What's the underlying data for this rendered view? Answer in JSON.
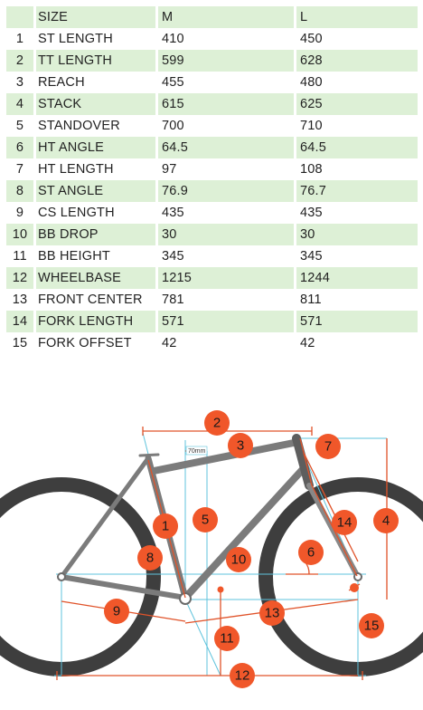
{
  "table": {
    "headers": [
      "",
      "SIZE",
      "M",
      "L"
    ],
    "rows": [
      {
        "n": "1",
        "name": "ST LENGTH",
        "m": "410",
        "l": "450"
      },
      {
        "n": "2",
        "name": "TT LENGTH",
        "m": "599",
        "l": "628"
      },
      {
        "n": "3",
        "name": "REACH",
        "m": "455",
        "l": "480"
      },
      {
        "n": "4",
        "name": "STACK",
        "m": "615",
        "l": "625"
      },
      {
        "n": "5",
        "name": "STANDOVER",
        "m": "700",
        "l": "710"
      },
      {
        "n": "6",
        "name": "HT ANGLE",
        "m": "64.5",
        "l": "64.5"
      },
      {
        "n": "7",
        "name": "HT LENGTH",
        "m": "97",
        "l": "108"
      },
      {
        "n": "8",
        "name": "ST ANGLE",
        "m": "76.9",
        "l": "76.7"
      },
      {
        "n": "9",
        "name": "CS LENGTH",
        "m": "435",
        "l": "435"
      },
      {
        "n": "10",
        "name": "BB DROP",
        "m": "30",
        "l": "30"
      },
      {
        "n": "11",
        "name": "BB HEIGHT",
        "m": "345",
        "l": "345"
      },
      {
        "n": "12",
        "name": "WHEELBASE",
        "m": "1215",
        "l": "1244"
      },
      {
        "n": "13",
        "name": "FRONT CENTER",
        "m": "781",
        "l": "811"
      },
      {
        "n": "14",
        "name": "FORK LENGTH",
        "m": "571",
        "l": "571"
      },
      {
        "n": "15",
        "name": "FORK OFFSET",
        "m": "42",
        "l": "42"
      }
    ]
  },
  "diagram": {
    "dimension_note": "70mm",
    "badges": [
      "1",
      "2",
      "3",
      "4",
      "5",
      "6",
      "7",
      "8",
      "9",
      "10",
      "11",
      "12",
      "13",
      "14",
      "15"
    ],
    "colors": {
      "badge": "#f0572a",
      "dimension_line": "#e0532a",
      "guide_line": "#5fc3dc",
      "frame": "#7b7b7b",
      "tire": "#3e3e3e",
      "row_stripe": "#ddf0d6"
    }
  }
}
